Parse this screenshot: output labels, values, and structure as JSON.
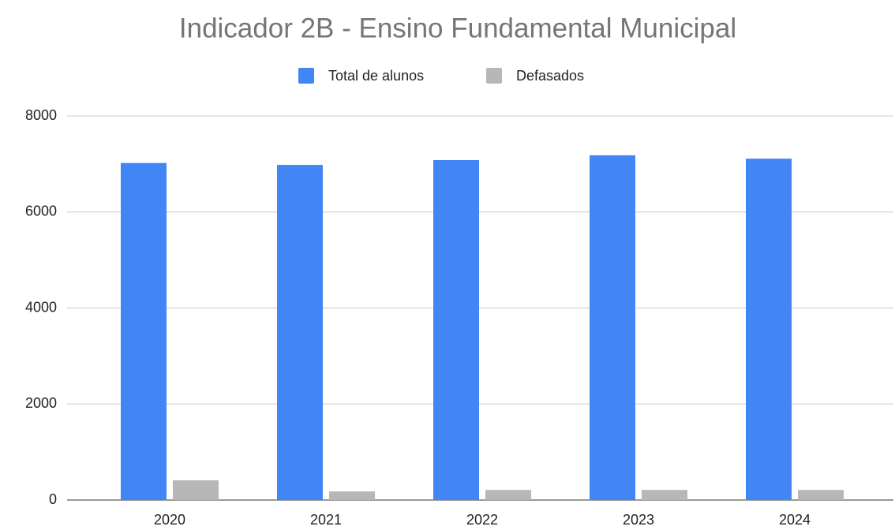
{
  "chart_data": {
    "type": "bar",
    "title": "Indicador 2B - Ensino Fundamental Municipal",
    "categories": [
      "2020",
      "2021",
      "2022",
      "2023",
      "2024"
    ],
    "series": [
      {
        "name": "Total de alunos",
        "color": "#4285f4",
        "values": [
          7020,
          6980,
          7080,
          7180,
          7110
        ]
      },
      {
        "name": "Defasados",
        "color": "#b7b7b7",
        "values": [
          410,
          180,
          210,
          210,
          210
        ]
      }
    ],
    "ylim": [
      0,
      8000
    ],
    "yticks": [
      0,
      2000,
      4000,
      6000,
      8000
    ],
    "grid": true,
    "legend": "top"
  }
}
